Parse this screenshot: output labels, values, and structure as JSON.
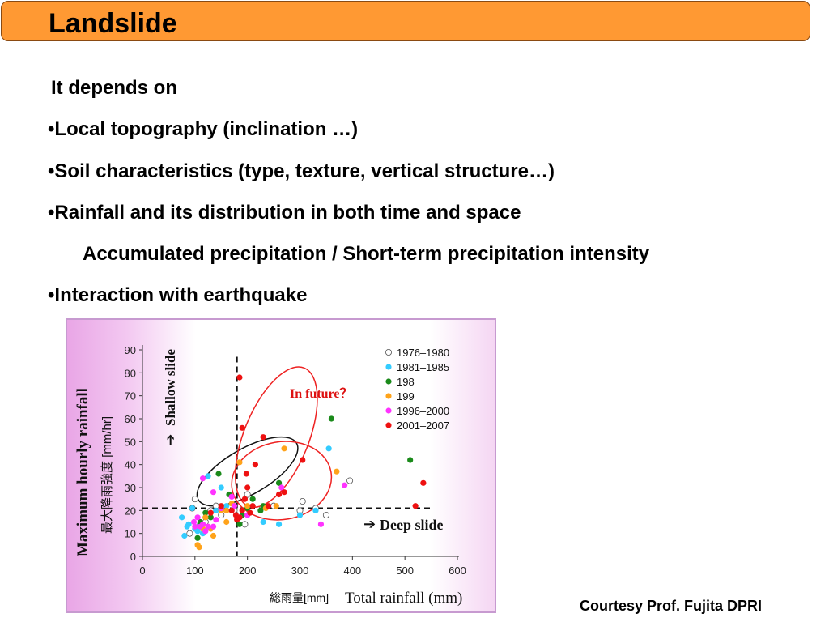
{
  "slide": {
    "title": "Landslide",
    "intro": "It depends on",
    "bullets": [
      "•Local topography (inclination …)",
      "•Soil characteristics (type, texture, vertical structure…)",
      "•Rainfall and its distribution in both time and space",
      "Accumulated precipitation / Short-term precipitation intensity",
      "•Interaction with earthquake"
    ],
    "credit": "Courtesy Prof. Fujita DPRI"
  },
  "colors": {
    "title_bg": "#ff9933",
    "series_1976_1980": "#ffffff",
    "series_1981_1985": "#33ccff",
    "series_198": "#1a8a1a",
    "series_199": "#ffa31a",
    "series_1996_2000": "#ff33ff",
    "series_2001_2007": "#ee1111"
  },
  "chart_data": {
    "type": "scatter",
    "xlabel": "Total rainfall (mm)",
    "xlabel_jp": "総雨量",
    "xunit_jp": "[mm]",
    "ylabel": "Maximum hourly rainfall",
    "ylabel_jp": "最大降雨強度",
    "yunit_jp": "[mm/hr]",
    "xlim": [
      0,
      600
    ],
    "ylim": [
      0,
      90
    ],
    "xticks": [
      "0",
      "100",
      "200",
      "300",
      "400",
      "500",
      "600"
    ],
    "yticks": [
      "0",
      "10",
      "20",
      "30",
      "40",
      "50",
      "60",
      "70",
      "80",
      "90"
    ],
    "threshold_x": 180,
    "threshold_y": 21,
    "annotations": {
      "shallow": "Shallow slide",
      "deep": "Deep slide",
      "future": "In future？"
    },
    "legend_position": "top-right",
    "series": [
      {
        "name": "1976–1980",
        "color": "#ffffff",
        "points": [
          [
            90,
            10
          ],
          [
            95,
            21
          ],
          [
            100,
            25
          ],
          [
            110,
            14
          ],
          [
            120,
            15
          ],
          [
            130,
            20
          ],
          [
            150,
            18
          ],
          [
            175,
            20
          ],
          [
            200,
            27
          ],
          [
            250,
            22
          ],
          [
            300,
            20
          ],
          [
            305,
            24
          ],
          [
            330,
            21
          ],
          [
            350,
            18
          ],
          [
            395,
            33
          ],
          [
            195,
            14
          ],
          [
            140,
            22
          ]
        ]
      },
      {
        "name": "1981–1985",
        "color": "#33ccff",
        "points": [
          [
            75,
            17
          ],
          [
            80,
            9
          ],
          [
            85,
            13
          ],
          [
            88,
            14
          ],
          [
            95,
            21
          ],
          [
            100,
            12
          ],
          [
            105,
            11
          ],
          [
            110,
            14
          ],
          [
            115,
            10
          ],
          [
            125,
            35
          ],
          [
            140,
            20
          ],
          [
            150,
            30
          ],
          [
            160,
            22
          ],
          [
            230,
            15
          ],
          [
            260,
            14
          ],
          [
            300,
            18
          ],
          [
            330,
            20
          ],
          [
            355,
            47
          ],
          [
            120,
            17
          ]
        ]
      },
      {
        "name": "198",
        "color": "#1a8a1a",
        "points": [
          [
            105,
            8
          ],
          [
            110,
            15
          ],
          [
            120,
            19
          ],
          [
            130,
            17
          ],
          [
            145,
            36
          ],
          [
            165,
            27
          ],
          [
            185,
            14
          ],
          [
            190,
            18
          ],
          [
            200,
            21
          ],
          [
            210,
            25
          ],
          [
            225,
            20
          ],
          [
            230,
            22
          ],
          [
            260,
            32
          ],
          [
            360,
            60
          ],
          [
            510,
            42
          ]
        ]
      },
      {
        "name": "199",
        "color": "#ffa31a",
        "points": [
          [
            105,
            5
          ],
          [
            108,
            4
          ],
          [
            115,
            12
          ],
          [
            120,
            17
          ],
          [
            130,
            12
          ],
          [
            135,
            9
          ],
          [
            150,
            20
          ],
          [
            160,
            20
          ],
          [
            170,
            23
          ],
          [
            185,
            41
          ],
          [
            200,
            22
          ],
          [
            235,
            21
          ],
          [
            255,
            22
          ],
          [
            270,
            47
          ],
          [
            370,
            37
          ],
          [
            160,
            15
          ]
        ]
      },
      {
        "name": "1996–2000",
        "color": "#ff33ff",
        "points": [
          [
            98,
            15
          ],
          [
            100,
            13
          ],
          [
            105,
            17
          ],
          [
            110,
            13
          ],
          [
            115,
            14
          ],
          [
            120,
            11
          ],
          [
            125,
            13
          ],
          [
            135,
            13
          ],
          [
            140,
            16
          ],
          [
            150,
            21
          ],
          [
            170,
            26
          ],
          [
            175,
            22
          ],
          [
            185,
            17
          ],
          [
            200,
            18
          ],
          [
            265,
            30
          ],
          [
            340,
            14
          ],
          [
            385,
            31
          ],
          [
            115,
            34
          ],
          [
            135,
            28
          ]
        ]
      },
      {
        "name": "2001–2007",
        "color": "#ee1111",
        "points": [
          [
            130,
            19
          ],
          [
            150,
            22
          ],
          [
            170,
            20
          ],
          [
            178,
            18
          ],
          [
            180,
            16
          ],
          [
            185,
            17
          ],
          [
            190,
            20
          ],
          [
            195,
            25
          ],
          [
            198,
            36
          ],
          [
            200,
            30
          ],
          [
            205,
            19
          ],
          [
            215,
            40
          ],
          [
            230,
            52
          ],
          [
            185,
            78
          ],
          [
            190,
            56
          ],
          [
            210,
            22
          ],
          [
            260,
            27
          ],
          [
            270,
            28
          ],
          [
            305,
            42
          ],
          [
            520,
            22
          ],
          [
            535,
            32
          ],
          [
            240,
            22
          ]
        ]
      }
    ]
  }
}
